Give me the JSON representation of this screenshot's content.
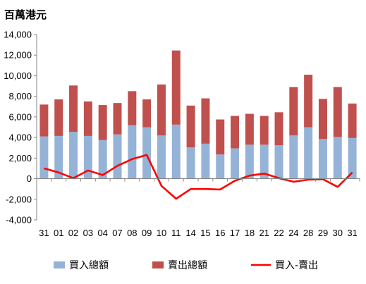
{
  "chart_data": {
    "type": "bar",
    "title": "百萬港元",
    "stacked": true,
    "categories": [
      "31",
      "01",
      "02",
      "03",
      "04",
      "07",
      "08",
      "09",
      "10",
      "11",
      "14",
      "15",
      "16",
      "17",
      "18",
      "21",
      "22",
      "24",
      "28",
      "29",
      "30",
      "31"
    ],
    "series": [
      {
        "name": "買入總額",
        "type": "bar",
        "color": "#95b3d7",
        "values": [
          4100,
          4150,
          4550,
          4150,
          3750,
          4300,
          5200,
          5000,
          4200,
          5250,
          3050,
          3400,
          2350,
          2950,
          3300,
          3300,
          3250,
          4200,
          5000,
          3850,
          4050,
          3950
        ]
      },
      {
        "name": "賣出總額",
        "type": "bar",
        "color": "#c0504d",
        "values": [
          3100,
          3550,
          4500,
          3350,
          3400,
          3050,
          3300,
          2700,
          4950,
          7200,
          4050,
          4400,
          3400,
          3150,
          3000,
          2800,
          3200,
          4700,
          5100,
          3900,
          4850,
          3350
        ]
      },
      {
        "name": "買入-賣出",
        "type": "line",
        "color": "#ff0000",
        "values": [
          1000,
          600,
          50,
          800,
          350,
          1250,
          1900,
          2300,
          -700,
          -1950,
          -1000,
          -1000,
          -1050,
          -200,
          300,
          500,
          50,
          -300,
          -100,
          -50,
          -800,
          600
        ]
      }
    ],
    "ylim": [
      -4000,
      14000
    ],
    "yticks": [
      "-4,000",
      "-2,000",
      "0",
      "2,000",
      "4,000",
      "6,000",
      "8,000",
      "10,000",
      "12,000",
      "14,000"
    ],
    "legend_position": "bottom",
    "grid": false
  }
}
